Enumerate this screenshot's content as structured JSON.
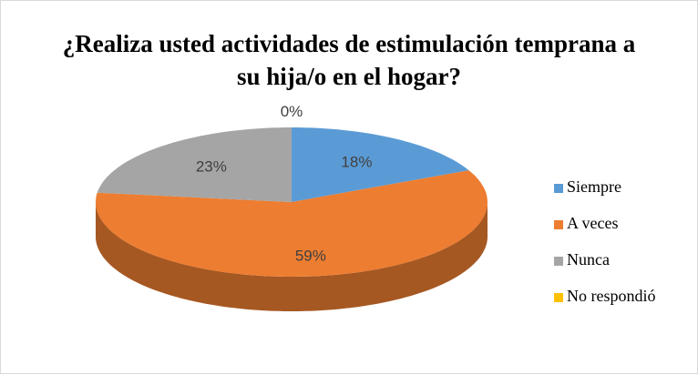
{
  "chart_data": {
    "type": "pie",
    "title": "¿Realiza usted actividades de estimulación temprana a su hija/o en el hogar?",
    "categories": [
      "Siempre",
      "A veces",
      "Nunca",
      "No respondió"
    ],
    "values": [
      18,
      59,
      23,
      0
    ],
    "value_labels": [
      "18%",
      "59%",
      "23%",
      "0%"
    ],
    "colors": [
      "#5b9bd5",
      "#ed7d31",
      "#a5a5a5",
      "#ffc000"
    ],
    "legend": "right"
  }
}
